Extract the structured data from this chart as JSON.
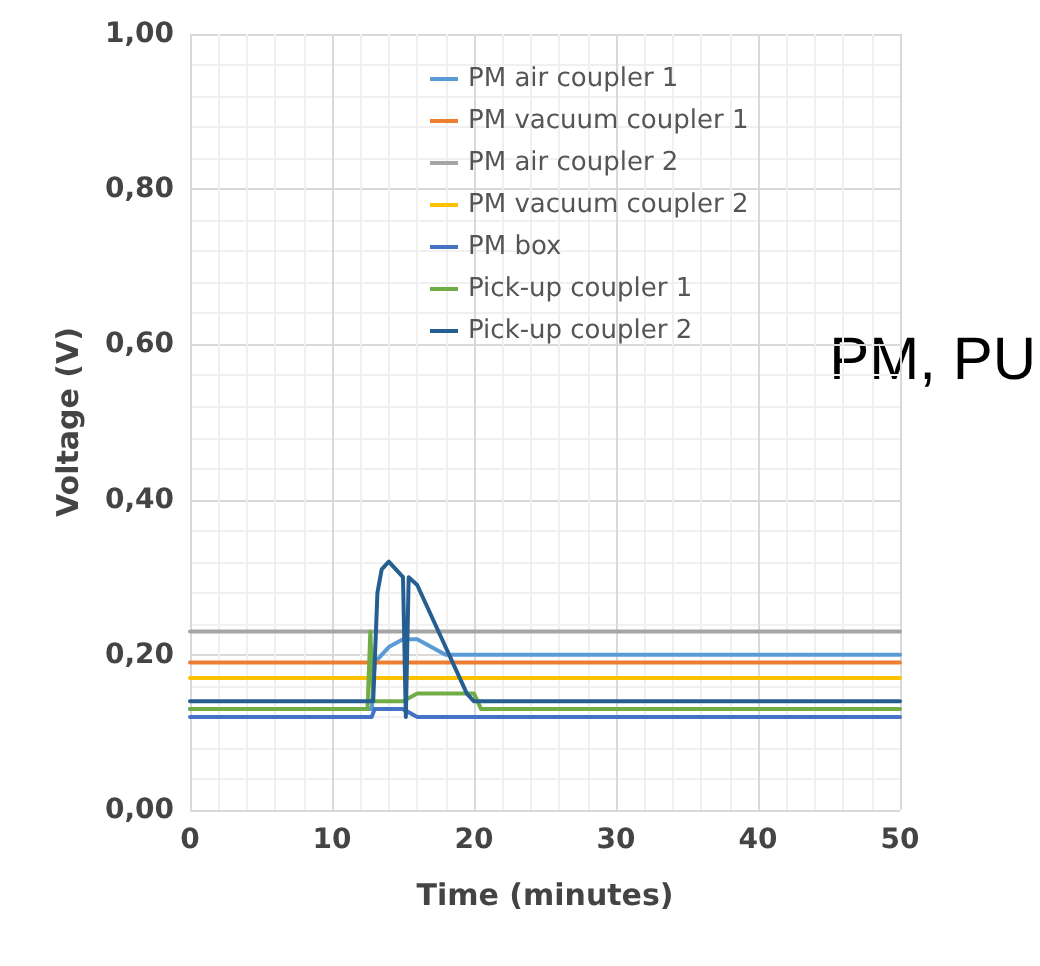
{
  "chart_data": {
    "type": "line",
    "xlabel": "Time (minutes)",
    "ylabel": "Voltage (V)",
    "xlim": [
      0,
      50
    ],
    "xticks": [
      0,
      10,
      20,
      30,
      40,
      50
    ],
    "ylim": [
      0,
      1
    ],
    "yticks": [
      {
        "value": 0,
        "label": "0,00"
      },
      {
        "value": 0.2,
        "label": "0,20"
      },
      {
        "value": 0.4,
        "label": "0,40"
      },
      {
        "value": 0.6,
        "label": "0,60"
      },
      {
        "value": 0.8,
        "label": "0,80"
      },
      {
        "value": 1,
        "label": "1,00"
      }
    ],
    "grid": true,
    "legend": "top",
    "marker": "none",
    "line_style": "solid",
    "annotations": [
      "PM, PU"
    ],
    "series": [
      {
        "name": "PM air coupler 1",
        "color": "#5b9bd5",
        "x": [
          0,
          12.8,
          13,
          13.5,
          14,
          15,
          16,
          17,
          18,
          20,
          30,
          40,
          50
        ],
        "values": [
          0.13,
          0.13,
          0.19,
          0.2,
          0.21,
          0.22,
          0.22,
          0.21,
          0.2,
          0.2,
          0.2,
          0.2,
          0.2
        ]
      },
      {
        "name": "PM vacuum coupler 1",
        "color": "#ed7d31",
        "x": [
          0,
          10,
          20,
          30,
          40,
          50
        ],
        "values": [
          0.19,
          0.19,
          0.19,
          0.19,
          0.19,
          0.19
        ]
      },
      {
        "name": "PM air coupler 2",
        "color": "#a5a5a5",
        "x": [
          0,
          10,
          20,
          30,
          40,
          50
        ],
        "values": [
          0.23,
          0.23,
          0.23,
          0.23,
          0.23,
          0.23
        ]
      },
      {
        "name": "PM vacuum coupler 2",
        "color": "#ffc000",
        "x": [
          0,
          10,
          20,
          30,
          40,
          50
        ],
        "values": [
          0.17,
          0.17,
          0.17,
          0.17,
          0.17,
          0.17
        ]
      },
      {
        "name": "PM box",
        "color": "#4472c4",
        "x": [
          0,
          12.8,
          13,
          15,
          16,
          20,
          30,
          40,
          50
        ],
        "values": [
          0.12,
          0.12,
          0.13,
          0.13,
          0.12,
          0.12,
          0.12,
          0.12,
          0.12
        ]
      },
      {
        "name": "Pick-up coupler 1",
        "color": "#70ad47",
        "x": [
          0,
          12.5,
          12.7,
          12.9,
          13,
          15,
          16,
          18,
          20,
          20.5,
          30,
          40,
          50
        ],
        "values": [
          0.13,
          0.13,
          0.23,
          0.14,
          0.14,
          0.14,
          0.15,
          0.15,
          0.15,
          0.13,
          0.13,
          0.13,
          0.13
        ]
      },
      {
        "name": "Pick-up coupler 2",
        "color": "#255e91",
        "x": [
          0,
          5,
          10,
          12.9,
          13.2,
          13.5,
          14,
          14.5,
          15,
          15.2,
          15.4,
          16,
          16.5,
          17,
          17.5,
          18,
          18.5,
          19,
          19.5,
          20,
          30,
          40,
          50
        ],
        "values": [
          0.14,
          0.14,
          0.14,
          0.14,
          0.28,
          0.31,
          0.32,
          0.31,
          0.3,
          0.12,
          0.3,
          0.29,
          0.27,
          0.25,
          0.23,
          0.21,
          0.19,
          0.17,
          0.15,
          0.14,
          0.14,
          0.14,
          0.14
        ]
      }
    ]
  }
}
